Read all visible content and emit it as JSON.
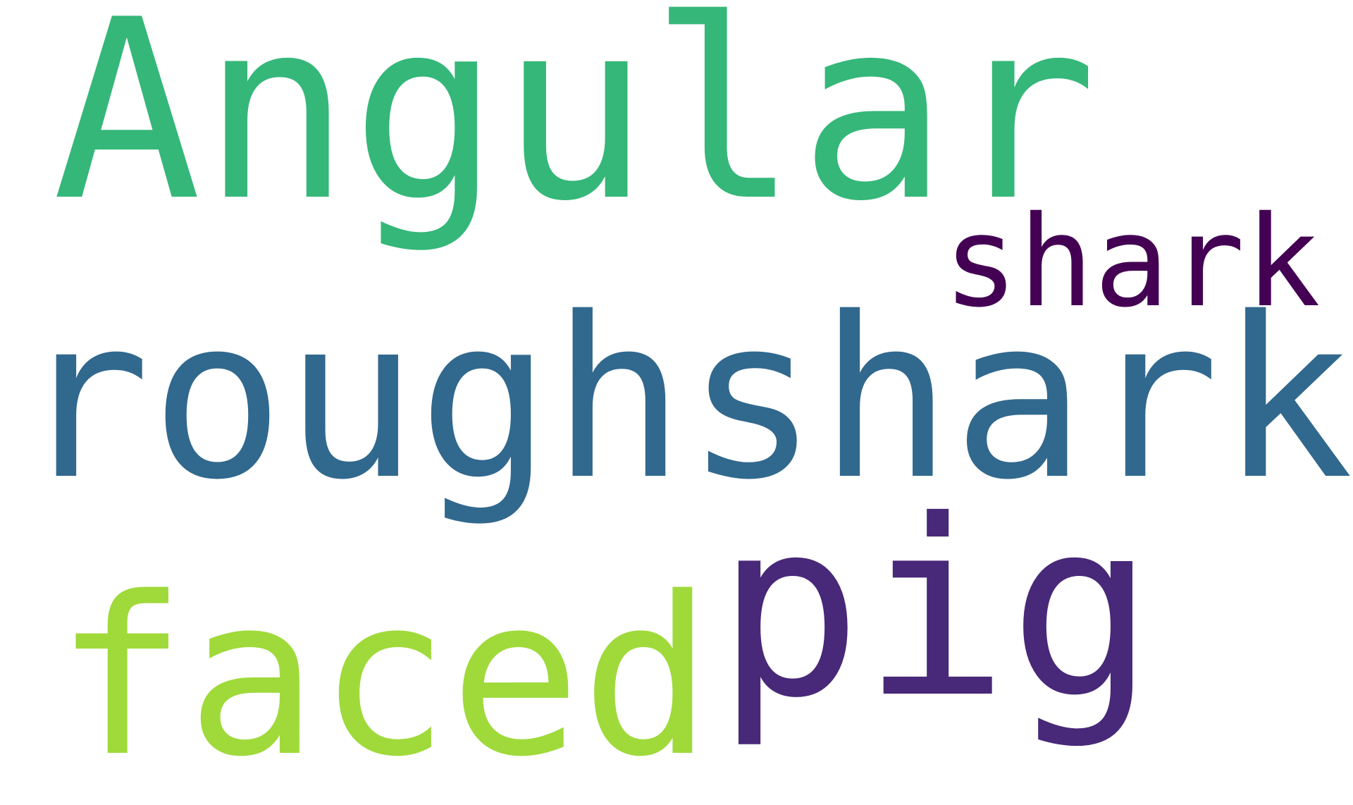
{
  "wordcloud": {
    "words": [
      {
        "text": "Angular",
        "color": "#35b779"
      },
      {
        "text": "shark",
        "color": "#440154"
      },
      {
        "text": "roughshark",
        "color": "#31688e"
      },
      {
        "text": "pig",
        "color": "#482878"
      },
      {
        "text": "faced",
        "color": "#9fda3a"
      }
    ]
  }
}
